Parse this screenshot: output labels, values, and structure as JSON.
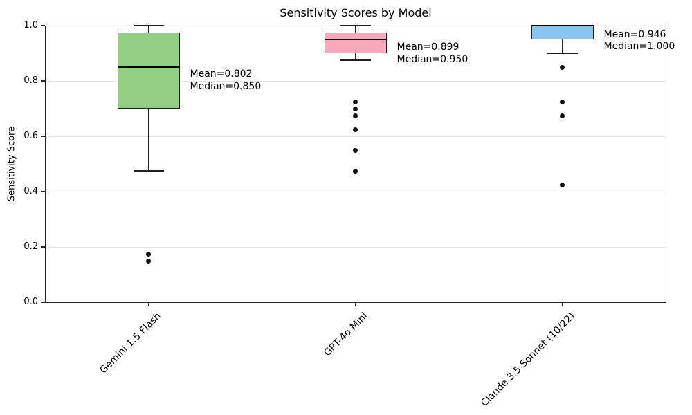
{
  "chart_data": {
    "type": "boxplot",
    "title": "Sensitivity Scores by Model",
    "ylabel": "Sensitivity Score",
    "xlabel": "",
    "ylim": [
      0.0,
      1.0
    ],
    "ytick_values": [
      0.0,
      0.2,
      0.4,
      0.6,
      0.8,
      1.0
    ],
    "yticks": [
      "0.0",
      "0.2",
      "0.4",
      "0.6",
      "0.8",
      "1.0"
    ],
    "grid": "horizontal gridlines every 0.2, light gray, legend none",
    "categories": [
      "Gemini 1.5 Flash",
      "GPT-4o Mini",
      "Claude 3.5 Sonnet (10/22)"
    ],
    "series": [
      {
        "name": "Gemini 1.5 Flash",
        "fill_color": "#93cf82",
        "whisker_low": 0.475,
        "q1": 0.7,
        "median": 0.85,
        "q3": 0.975,
        "whisker_high": 1.0,
        "mean": 0.802,
        "outliers": [
          0.175,
          0.15
        ],
        "annotation_line1": "Mean=0.802",
        "annotation_line2": "Median=0.850"
      },
      {
        "name": "GPT-4o Mini",
        "fill_color": "#f9a8bc",
        "whisker_low": 0.875,
        "q1": 0.9,
        "median": 0.95,
        "q3": 0.975,
        "whisker_high": 1.0,
        "mean": 0.899,
        "outliers": [
          0.725,
          0.7,
          0.675,
          0.625,
          0.55,
          0.475
        ],
        "annotation_line1": "Mean=0.899",
        "annotation_line2": "Median=0.950"
      },
      {
        "name": "Claude 3.5 Sonnet (10/22)",
        "fill_color": "#87c6ee",
        "whisker_low": 0.9,
        "q1": 0.95,
        "median": 1.0,
        "q3": 1.0,
        "whisker_high": 1.0,
        "mean": 0.946,
        "outliers": [
          0.85,
          0.725,
          0.675,
          0.425
        ],
        "annotation_line1": "Mean=0.946",
        "annotation_line2": "Median=1.000"
      }
    ],
    "colors": {
      "box_edge": "#1f1f1f",
      "median": "#000000",
      "grid": "#e7e7e7",
      "spine": "#262626",
      "outlier": "#111111",
      "background": "#ffffff",
      "text": "#000000"
    }
  }
}
